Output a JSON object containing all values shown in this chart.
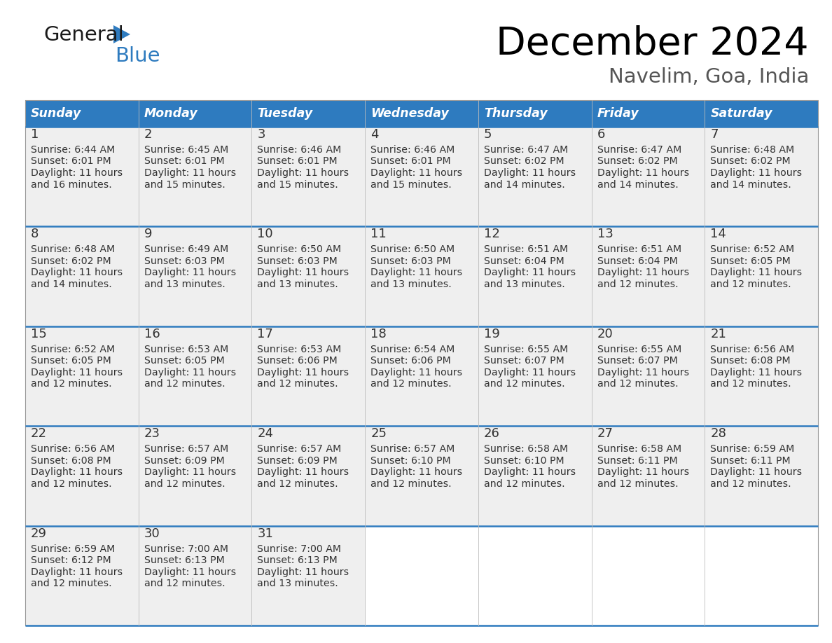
{
  "title": "December 2024",
  "subtitle": "Navelim, Goa, India",
  "header_bg_color": "#2E7BBF",
  "header_text_color": "#FFFFFF",
  "days_of_week": [
    "Sunday",
    "Monday",
    "Tuesday",
    "Wednesday",
    "Thursday",
    "Friday",
    "Saturday"
  ],
  "cell_bg_color": "#EFEFEF",
  "row_line_color": "#2E7BBF",
  "day_num_color": "#333333",
  "text_color": "#333333",
  "calendar": [
    [
      {
        "day": 1,
        "sunrise": "6:44 AM",
        "sunset": "6:01 PM",
        "daylight": "11 hours and 16 minutes"
      },
      {
        "day": 2,
        "sunrise": "6:45 AM",
        "sunset": "6:01 PM",
        "daylight": "11 hours and 15 minutes"
      },
      {
        "day": 3,
        "sunrise": "6:46 AM",
        "sunset": "6:01 PM",
        "daylight": "11 hours and 15 minutes"
      },
      {
        "day": 4,
        "sunrise": "6:46 AM",
        "sunset": "6:01 PM",
        "daylight": "11 hours and 15 minutes"
      },
      {
        "day": 5,
        "sunrise": "6:47 AM",
        "sunset": "6:02 PM",
        "daylight": "11 hours and 14 minutes"
      },
      {
        "day": 6,
        "sunrise": "6:47 AM",
        "sunset": "6:02 PM",
        "daylight": "11 hours and 14 minutes"
      },
      {
        "day": 7,
        "sunrise": "6:48 AM",
        "sunset": "6:02 PM",
        "daylight": "11 hours and 14 minutes"
      }
    ],
    [
      {
        "day": 8,
        "sunrise": "6:48 AM",
        "sunset": "6:02 PM",
        "daylight": "11 hours and 14 minutes"
      },
      {
        "day": 9,
        "sunrise": "6:49 AM",
        "sunset": "6:03 PM",
        "daylight": "11 hours and 13 minutes"
      },
      {
        "day": 10,
        "sunrise": "6:50 AM",
        "sunset": "6:03 PM",
        "daylight": "11 hours and 13 minutes"
      },
      {
        "day": 11,
        "sunrise": "6:50 AM",
        "sunset": "6:03 PM",
        "daylight": "11 hours and 13 minutes"
      },
      {
        "day": 12,
        "sunrise": "6:51 AM",
        "sunset": "6:04 PM",
        "daylight": "11 hours and 13 minutes"
      },
      {
        "day": 13,
        "sunrise": "6:51 AM",
        "sunset": "6:04 PM",
        "daylight": "11 hours and 12 minutes"
      },
      {
        "day": 14,
        "sunrise": "6:52 AM",
        "sunset": "6:05 PM",
        "daylight": "11 hours and 12 minutes"
      }
    ],
    [
      {
        "day": 15,
        "sunrise": "6:52 AM",
        "sunset": "6:05 PM",
        "daylight": "11 hours and 12 minutes"
      },
      {
        "day": 16,
        "sunrise": "6:53 AM",
        "sunset": "6:05 PM",
        "daylight": "11 hours and 12 minutes"
      },
      {
        "day": 17,
        "sunrise": "6:53 AM",
        "sunset": "6:06 PM",
        "daylight": "11 hours and 12 minutes"
      },
      {
        "day": 18,
        "sunrise": "6:54 AM",
        "sunset": "6:06 PM",
        "daylight": "11 hours and 12 minutes"
      },
      {
        "day": 19,
        "sunrise": "6:55 AM",
        "sunset": "6:07 PM",
        "daylight": "11 hours and 12 minutes"
      },
      {
        "day": 20,
        "sunrise": "6:55 AM",
        "sunset": "6:07 PM",
        "daylight": "11 hours and 12 minutes"
      },
      {
        "day": 21,
        "sunrise": "6:56 AM",
        "sunset": "6:08 PM",
        "daylight": "11 hours and 12 minutes"
      }
    ],
    [
      {
        "day": 22,
        "sunrise": "6:56 AM",
        "sunset": "6:08 PM",
        "daylight": "11 hours and 12 minutes"
      },
      {
        "day": 23,
        "sunrise": "6:57 AM",
        "sunset": "6:09 PM",
        "daylight": "11 hours and 12 minutes"
      },
      {
        "day": 24,
        "sunrise": "6:57 AM",
        "sunset": "6:09 PM",
        "daylight": "11 hours and 12 minutes"
      },
      {
        "day": 25,
        "sunrise": "6:57 AM",
        "sunset": "6:10 PM",
        "daylight": "11 hours and 12 minutes"
      },
      {
        "day": 26,
        "sunrise": "6:58 AM",
        "sunset": "6:10 PM",
        "daylight": "11 hours and 12 minutes"
      },
      {
        "day": 27,
        "sunrise": "6:58 AM",
        "sunset": "6:11 PM",
        "daylight": "11 hours and 12 minutes"
      },
      {
        "day": 28,
        "sunrise": "6:59 AM",
        "sunset": "6:11 PM",
        "daylight": "11 hours and 12 minutes"
      }
    ],
    [
      {
        "day": 29,
        "sunrise": "6:59 AM",
        "sunset": "6:12 PM",
        "daylight": "11 hours and 12 minutes"
      },
      {
        "day": 30,
        "sunrise": "7:00 AM",
        "sunset": "6:13 PM",
        "daylight": "11 hours and 12 minutes"
      },
      {
        "day": 31,
        "sunrise": "7:00 AM",
        "sunset": "6:13 PM",
        "daylight": "11 hours and 13 minutes"
      },
      null,
      null,
      null,
      null
    ]
  ],
  "logo_general_color": "#1A1A1A",
  "logo_blue_color": "#2E7BBF",
  "figsize": [
    11.88,
    9.18
  ],
  "dpi": 100
}
